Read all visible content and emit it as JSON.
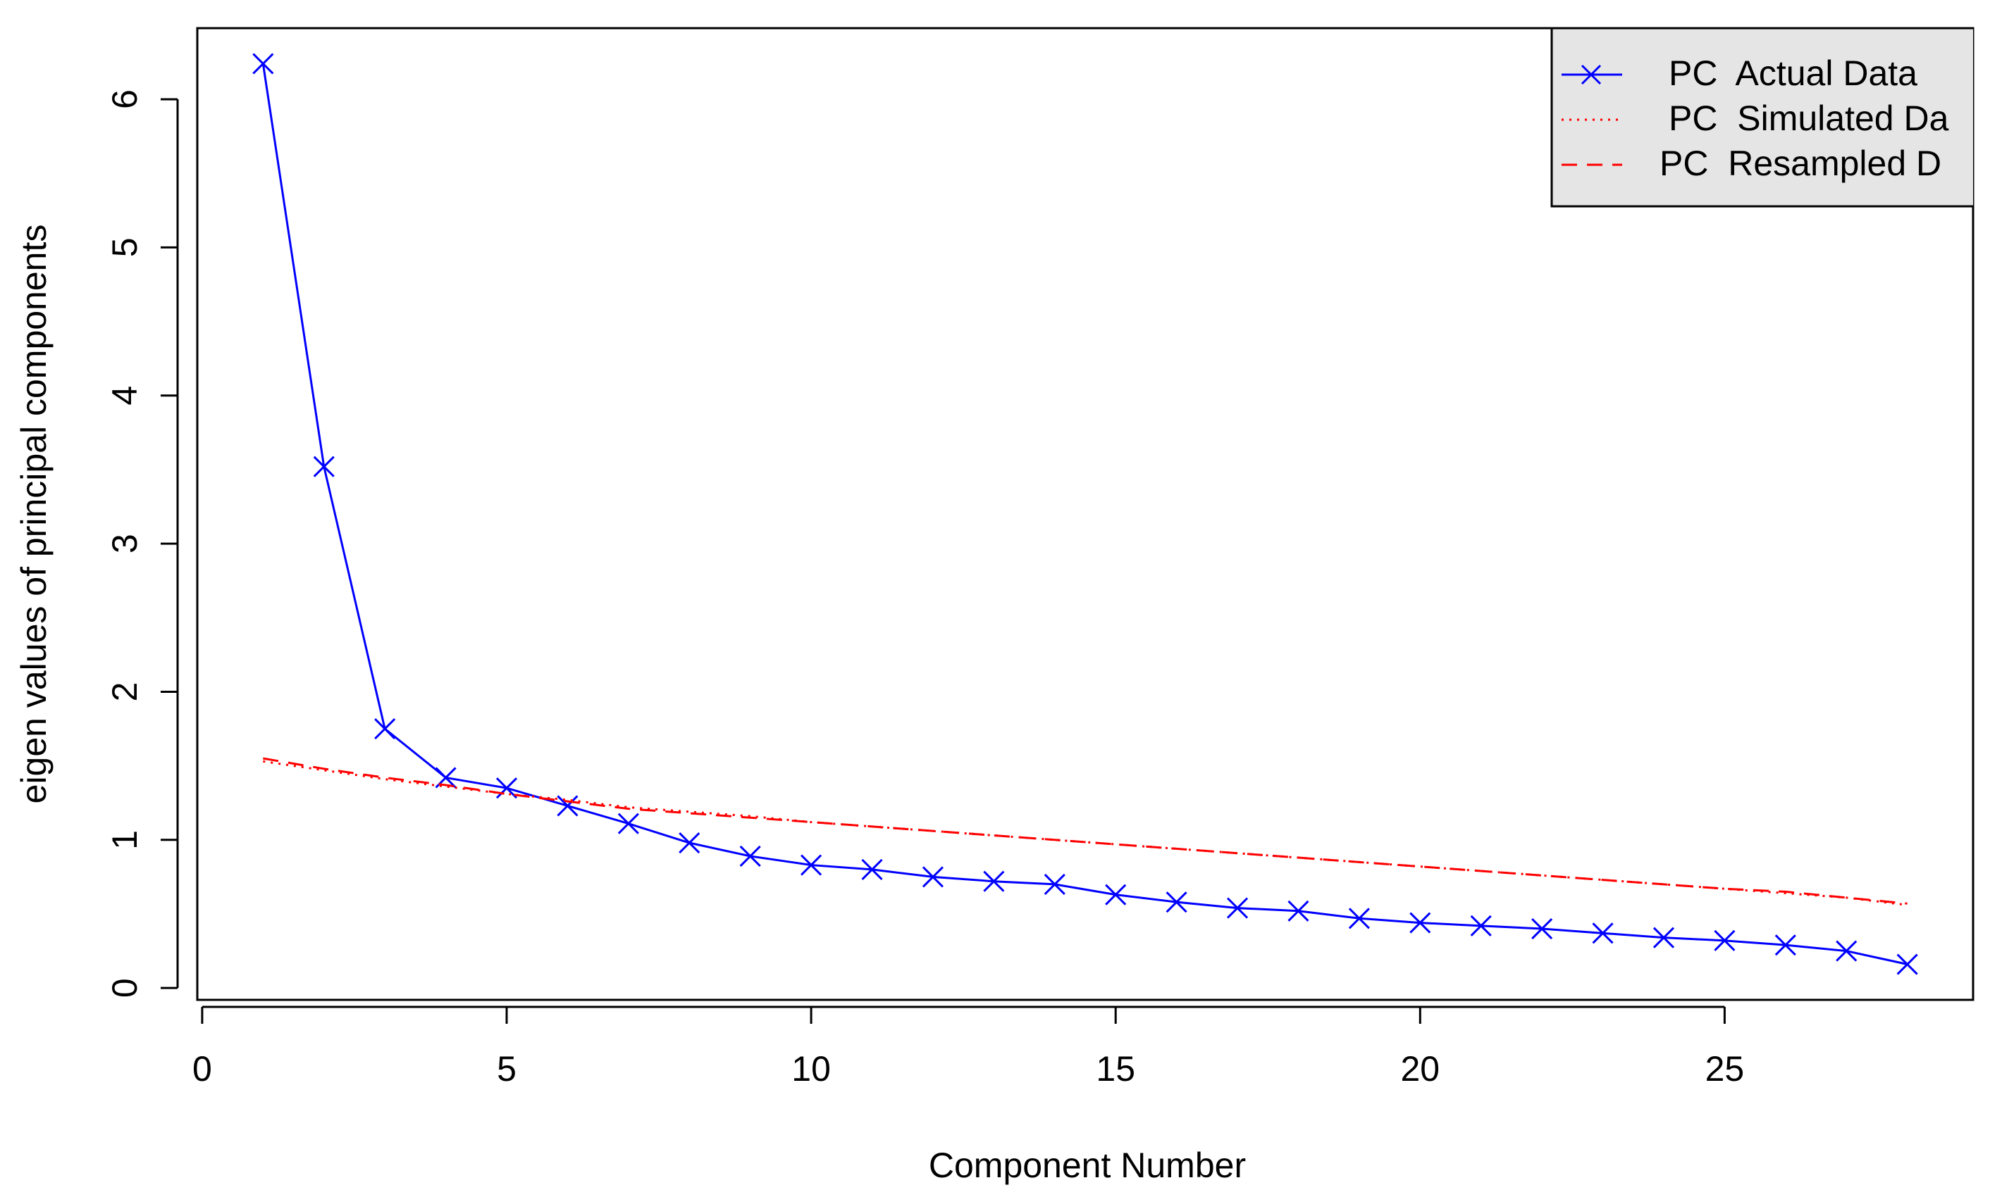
{
  "chart_data": {
    "type": "line",
    "x_label": "Component Number",
    "y_label": "eigen values of principal components",
    "x": [
      1,
      2,
      3,
      4,
      5,
      6,
      7,
      8,
      9,
      10,
      11,
      12,
      13,
      14,
      15,
      16,
      17,
      18,
      19,
      20,
      21,
      22,
      23,
      24,
      25,
      26,
      27,
      28
    ],
    "series": [
      {
        "name": "PC  Actual Data",
        "color": "#0000ff",
        "line": "solid",
        "marker": "x",
        "values": [
          6.24,
          3.52,
          1.75,
          1.42,
          1.35,
          1.23,
          1.11,
          0.98,
          0.89,
          0.83,
          0.8,
          0.75,
          0.72,
          0.7,
          0.63,
          0.58,
          0.54,
          0.52,
          0.47,
          0.44,
          0.42,
          0.4,
          0.37,
          0.34,
          0.32,
          0.29,
          0.25,
          0.16
        ]
      },
      {
        "name": "PC  Simulated Da",
        "color": "#ff0000",
        "line": "dotted",
        "values": [
          1.53,
          1.47,
          1.41,
          1.36,
          1.31,
          1.27,
          1.22,
          1.19,
          1.16,
          1.12,
          1.09,
          1.06,
          1.03,
          1.0,
          0.97,
          0.94,
          0.91,
          0.88,
          0.85,
          0.82,
          0.79,
          0.76,
          0.73,
          0.7,
          0.67,
          0.64,
          0.61,
          0.56
        ]
      },
      {
        "name": "PC  Resampled D",
        "color": "#ff0000",
        "line": "dashed",
        "values": [
          1.55,
          1.48,
          1.42,
          1.37,
          1.31,
          1.26,
          1.21,
          1.18,
          1.15,
          1.12,
          1.09,
          1.06,
          1.03,
          1.0,
          0.97,
          0.94,
          0.91,
          0.88,
          0.85,
          0.82,
          0.79,
          0.76,
          0.73,
          0.7,
          0.67,
          0.65,
          0.61,
          0.57
        ]
      }
    ],
    "xlim": [
      -0.08,
      29.08
    ],
    "xticks": [
      0,
      5,
      10,
      15,
      20,
      25
    ],
    "ylim": [
      -0.08,
      6.48
    ],
    "yticks": [
      0,
      1,
      2,
      3,
      4,
      5,
      6
    ],
    "legend": "top-right",
    "legend_text_color": "#1a9a1a",
    "legend_background": "#e5e5e5"
  }
}
